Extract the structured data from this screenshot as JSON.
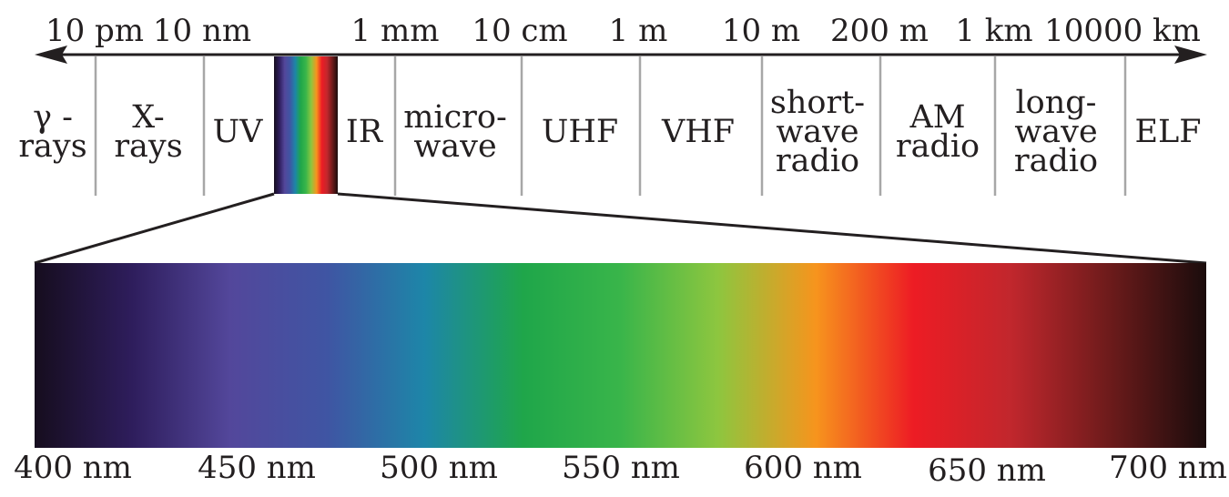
{
  "wavelength_scale": [
    "10 pm",
    "10 nm",
    "1 mm",
    "10 cm",
    "1 m",
    "10 m",
    "200 m",
    "1 km",
    "10000 km"
  ],
  "bands": [
    {
      "lines": [
        "γ -",
        "rays"
      ]
    },
    {
      "lines": [
        "X-",
        "rays"
      ]
    },
    {
      "lines": [
        "UV"
      ]
    },
    {
      "lines": [
        "IR"
      ]
    },
    {
      "lines": [
        "micro-",
        "wave"
      ]
    },
    {
      "lines": [
        "UHF"
      ]
    },
    {
      "lines": [
        "VHF"
      ]
    },
    {
      "lines": [
        "short-",
        "wave",
        "radio"
      ]
    },
    {
      "lines": [
        "AM",
        "radio"
      ]
    },
    {
      "lines": [
        "long-",
        "wave",
        "radio"
      ]
    },
    {
      "lines": [
        "ELF"
      ]
    }
  ],
  "visible_ticks": [
    "400 nm",
    "450 nm",
    "500 nm",
    "550 nm",
    "600 nm",
    "650 nm",
    "700 nm"
  ],
  "colors": {
    "ink": "#231f20",
    "divider": "#a7a7a7",
    "spectrum": [
      "#160d1e",
      "#2e1d5c",
      "#53479b",
      "#3f55a3",
      "#1d86a8",
      "#1fa64a",
      "#39b54a",
      "#8dc63f",
      "#f7941d",
      "#ed1c24",
      "#c1272d",
      "#6d1b1b",
      "#1a0c0c"
    ]
  }
}
